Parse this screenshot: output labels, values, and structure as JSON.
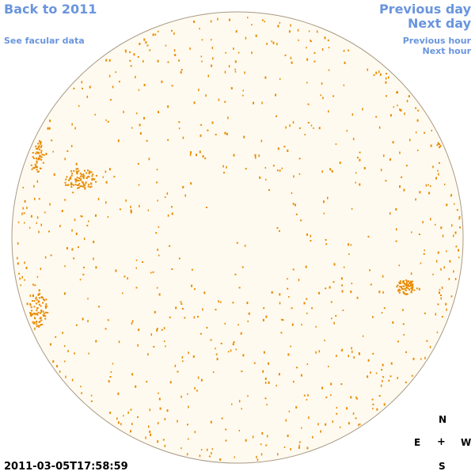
{
  "nav": {
    "back_label": "Back to 2011",
    "facular_label": "See facular data",
    "prev_day_label": "Previous day",
    "next_day_label": "Next day",
    "prev_hour_label": "Previous hour",
    "next_hour_label": "Next hour"
  },
  "timestamp": "2011-03-05T17:58:59",
  "compass": {
    "north": "N",
    "east": "E",
    "center": "+",
    "west": "W",
    "south": "S"
  },
  "colors": {
    "disk_fill": "#fffaef",
    "disk_border": "#a89a85",
    "feature": "#e88a00",
    "link": "#6a95dd"
  },
  "features": {
    "active_regions": [
      {
        "name": "east-limb-upper"
      },
      {
        "name": "upper-left-cluster"
      },
      {
        "name": "east-limb-lower"
      },
      {
        "name": "west-region"
      },
      {
        "name": "north-west-limb"
      }
    ]
  }
}
